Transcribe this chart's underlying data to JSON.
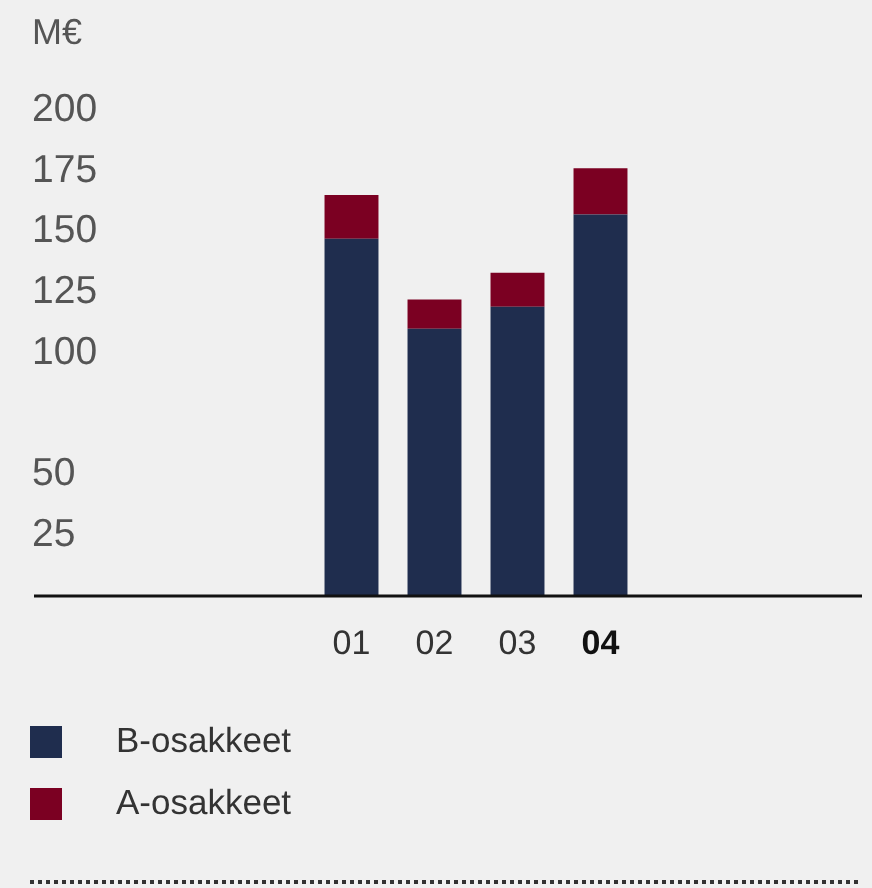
{
  "chart_data": {
    "type": "bar",
    "ylabel": "M€",
    "categories": [
      "01",
      "02",
      "03",
      "04"
    ],
    "stacked": true,
    "series": [
      {
        "name": "B-osakkeet",
        "color": "#1f2d4e",
        "values": [
          147,
          110,
          119,
          157
        ]
      },
      {
        "name": "A-osakkeet",
        "color": "#7b0022",
        "values": [
          18,
          12,
          14,
          19
        ]
      }
    ],
    "ylim": [
      0,
      200
    ],
    "yticks": [
      25,
      50,
      100,
      125,
      150,
      175,
      200
    ],
    "legend": "bottom left"
  }
}
